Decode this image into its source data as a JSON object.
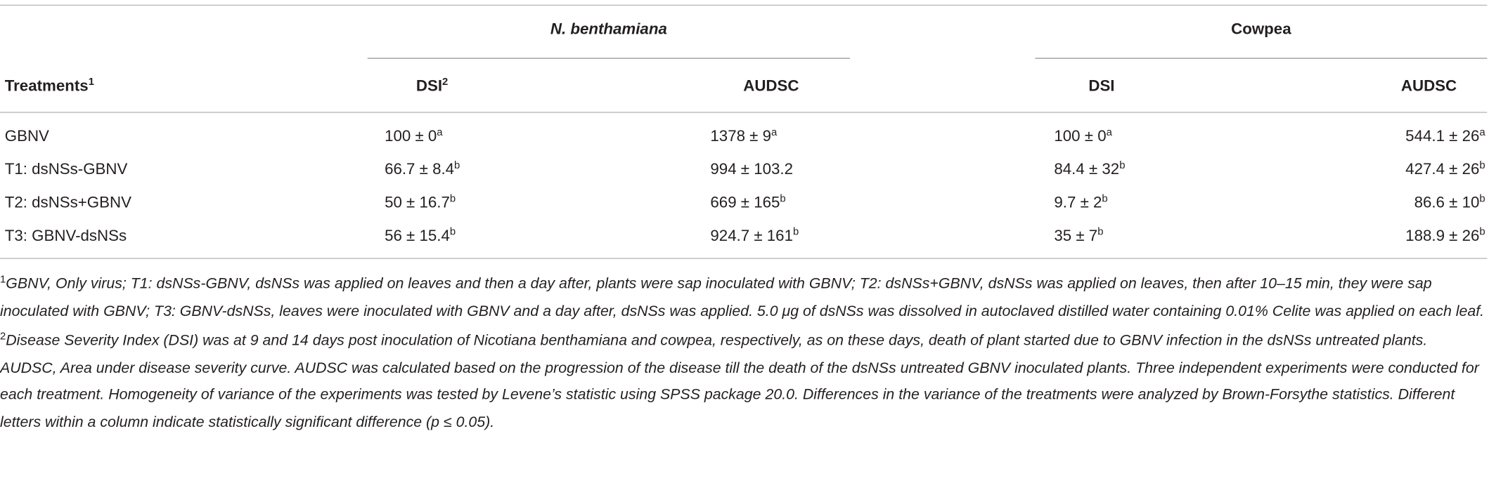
{
  "header": {
    "groups": [
      "N. benthamiana",
      "Cowpea"
    ],
    "columns": [
      {
        "text": "Treatments",
        "sup": "1"
      },
      {
        "text": "DSI",
        "sup": "2"
      },
      {
        "text": "AUDSC"
      },
      {
        "text": "DSI"
      },
      {
        "text": "AUDSC"
      }
    ]
  },
  "table": {
    "rows": [
      [
        {
          "text": "GBNV"
        },
        {
          "text": "100 ± 0",
          "sup": "a"
        },
        {
          "text": "1378 ± 9",
          "sup": "a"
        },
        {
          "text": "100 ± 0",
          "sup": "a"
        },
        {
          "text": "544.1 ± 26",
          "sup": "a"
        }
      ],
      [
        {
          "text": "T1: dsNSs-GBNV"
        },
        {
          "text": "66.7 ± 8.4",
          "sup": "b"
        },
        {
          "text": "994 ± 103.2"
        },
        {
          "text": "84.4 ± 32",
          "sup": "b"
        },
        {
          "text": "427.4 ± 26",
          "sup": "b"
        }
      ],
      [
        {
          "text": "T2: dsNSs+GBNV"
        },
        {
          "text": "50 ± 16.7",
          "sup": "b"
        },
        {
          "text": "669 ± 165",
          "sup": "b"
        },
        {
          "text": "9.7 ± 2",
          "sup": "b"
        },
        {
          "text": "86.6 ± 10",
          "sup": "b"
        }
      ],
      [
        {
          "text": "T3: GBNV-dsNSs"
        },
        {
          "text": "56 ± 15.4",
          "sup": "b"
        },
        {
          "text": "924.7 ± 161",
          "sup": "b"
        },
        {
          "text": "35 ± 7",
          "sup": "b"
        },
        {
          "text": "188.9 ± 26",
          "sup": "b"
        }
      ]
    ]
  },
  "footnotes": [
    {
      "mark": "1",
      "text": "GBNV, Only virus; T1: dsNSs-GBNV, dsNSs was applied on leaves and then a day after, plants were sap inoculated with GBNV; T2: dsNSs+GBNV, dsNSs was applied on leaves, then after 10–15 min, they were sap inoculated with GBNV; T3: GBNV-dsNSs, leaves were inoculated with GBNV and a day after, dsNSs was applied. 5.0 μg of dsNSs was dissolved in autoclaved distilled water containing 0.01% Celite was applied on each leaf."
    },
    {
      "mark": "2",
      "text": "Disease Severity Index (DSI) was at 9 and 14 days post inoculation of Nicotiana benthamiana and cowpea, respectively, as on these days, death of plant started due to GBNV infection in the dsNSs untreated plants. AUDSC, Area under disease severity curve. AUDSC was calculated based on the progression of the disease till the death of the dsNSs untreated GBNV inoculated plants. Three independent experiments were conducted for each treatment. Homogeneity of variance of the experiments was tested by Levene’s statistic using SPSS package 20.0. Differences in the variance of the treatments were analyzed by Brown-Forsythe statistics. Different letters within a column indicate statistically significant difference (p ≤ 0.05)."
    }
  ]
}
